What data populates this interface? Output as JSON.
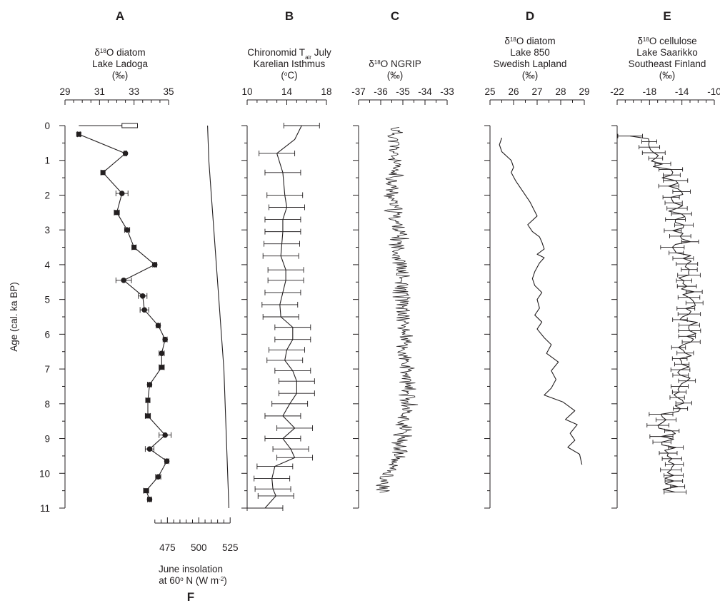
{
  "chart_data": {
    "type": "line",
    "y_axis": {
      "label": "Age (cal. ka BP)",
      "ticks": [
        "0",
        "1",
        "2",
        "3",
        "4",
        "5",
        "6",
        "7",
        "8",
        "9",
        "10",
        "11"
      ],
      "range": [
        0,
        11
      ],
      "inverted": true
    },
    "panels": [
      {
        "letter": "A",
        "title_lines": [
          "δ18O diatom",
          "Lake Ladoga",
          "(‰)"
        ],
        "xlim": [
          29,
          35
        ],
        "ticks": [
          "29",
          "31",
          "33",
          "35"
        ],
        "tick_values": [
          29,
          31,
          33,
          35
        ],
        "minor_step": 0.5,
        "modern_range": [
          29.8,
          33.2
        ],
        "modern_box": [
          32.3,
          33.2
        ],
        "series": [
          {
            "kind": "points_errors",
            "x": [
              29.8,
              32.5,
              31.2,
              32.3,
              32.0,
              32.6,
              33.0,
              34.2,
              32.4,
              33.5,
              33.6,
              34.4,
              34.8,
              34.6,
              34.6,
              33.9,
              33.8,
              33.8,
              34.8,
              33.9,
              34.9,
              34.4,
              33.7,
              33.9
            ],
            "age": [
              0.25,
              0.8,
              1.35,
              1.95,
              2.5,
              3.0,
              3.5,
              4.0,
              4.45,
              4.9,
              5.3,
              5.75,
              6.15,
              6.55,
              6.95,
              7.45,
              7.9,
              8.35,
              8.9,
              9.3,
              9.65,
              10.1,
              10.5,
              10.75
            ],
            "err": [
              0.08,
              0.08,
              0.12,
              0.35,
              0.15,
              0.15,
              0.12,
              0.12,
              0.45,
              0.25,
              0.25,
              0.12,
              0.12,
              0.15,
              0.15,
              0.12,
              0.12,
              0.15,
              0.35,
              0.25,
              0.12,
              0.15,
              0.15,
              0.12
            ]
          }
        ]
      },
      {
        "letter": "B",
        "title_lines": [
          "Chironomid T",
          "air",
          " July",
          "Karelian Isthmus",
          "(°C)"
        ],
        "xlim": [
          10,
          18
        ],
        "ticks": [
          "10",
          "14",
          "18"
        ],
        "tick_values": [
          10,
          14,
          18
        ],
        "minor_step": 1,
        "series": [
          {
            "kind": "line_errors",
            "x": [
              15.5,
              14.8,
              13.0,
              13.6,
              13.8,
              14.0,
              13.6,
              13.6,
              13.5,
              13.4,
              13.9,
              13.9,
              13.6,
              13.3,
              13.4,
              14.6,
              14.6,
              14.0,
              13.8,
              14.6,
              15.0,
              15.0,
              14.3,
              13.6,
              14.8,
              13.6,
              14.4,
              14.8,
              12.8,
              12.5,
              12.6,
              12.9,
              11.8
            ],
            "age": [
              0,
              0.4,
              0.8,
              1.35,
              2.0,
              2.35,
              2.7,
              3.05,
              3.4,
              3.75,
              4.15,
              4.45,
              4.8,
              5.15,
              5.5,
              5.8,
              6.15,
              6.45,
              6.75,
              7.05,
              7.35,
              7.7,
              8.0,
              8.35,
              8.7,
              9.0,
              9.3,
              9.55,
              9.8,
              10.15,
              10.45,
              10.65,
              11.0
            ],
            "err": [
              1.8,
              0,
              1.8,
              1.8,
              1.8,
              1.8,
              1.8,
              1.8,
              1.8,
              1.8,
              1.8,
              1.8,
              1.8,
              1.8,
              1.8,
              1.8,
              1.8,
              1.8,
              1.8,
              1.8,
              1.8,
              1.8,
              1.8,
              1.8,
              1.8,
              1.8,
              1.8,
              1.8,
              1.8,
              1.8,
              1.8,
              1.8,
              1.8
            ]
          }
        ]
      },
      {
        "letter": "C",
        "title_lines": [
          "δ18O NGRIP",
          "(‰)"
        ],
        "xlim": [
          -37,
          -33
        ],
        "ticks": [
          "-37",
          "-36",
          "-35",
          "-34",
          "-33"
        ],
        "tick_values": [
          -37,
          -36,
          -35,
          -34,
          -33
        ],
        "minor_step": 0.5,
        "series": [
          {
            "kind": "dense_line",
            "age_start": 0.05,
            "age_end": 10.55,
            "step": 0.025,
            "anchors_age": [
              0.05,
              0.5,
              1.0,
              1.5,
              2.0,
              2.5,
              3.0,
              3.5,
              4.0,
              4.5,
              5.0,
              5.5,
              6.0,
              6.5,
              7.0,
              7.5,
              8.0,
              8.5,
              9.0,
              9.5,
              10.0,
              10.3,
              10.55
            ],
            "anchors_mean": [
              -35.3,
              -35.4,
              -35.4,
              -35.4,
              -35.5,
              -35.4,
              -35.2,
              -35.2,
              -35.1,
              -35.1,
              -35.0,
              -35.0,
              -34.9,
              -35.0,
              -34.9,
              -34.8,
              -34.7,
              -35.0,
              -35.0,
              -35.3,
              -35.6,
              -35.9,
              -36.0
            ],
            "amplitude": 0.35
          }
        ]
      },
      {
        "letter": "D",
        "title_lines": [
          "δ18O diatom",
          "Lake 850",
          "Swedish Lapland",
          "(‰)"
        ],
        "xlim": [
          25,
          29
        ],
        "ticks": [
          "25",
          "26",
          "27",
          "28",
          "29"
        ],
        "tick_values": [
          25,
          26,
          27,
          28,
          29
        ],
        "minor_step": 0.5,
        "series": [
          {
            "kind": "line",
            "x": [
              25.5,
              25.4,
              25.5,
              25.9,
              26.0,
              25.9,
              26.1,
              26.3,
              26.5,
              26.7,
              27.0,
              26.6,
              26.8,
              27.1,
              27.2,
              27.3,
              27.0,
              27.3,
              27.1,
              26.9,
              26.8,
              26.9,
              27.2,
              27.0,
              27.1,
              26.9,
              27.2,
              27.0,
              27.3,
              27.6,
              27.4,
              27.9,
              27.6,
              27.8,
              27.6,
              27.3,
              28.1,
              28.6,
              28.2,
              28.7,
              28.4,
              28.6,
              28.3,
              28.8,
              28.9
            ],
            "age": [
              0.35,
              0.55,
              0.75,
              1.0,
              1.2,
              1.35,
              1.6,
              1.8,
              2.0,
              2.2,
              2.6,
              2.85,
              3.05,
              3.2,
              3.35,
              3.55,
              3.7,
              3.8,
              3.95,
              4.2,
              4.4,
              4.6,
              4.8,
              5.0,
              5.25,
              5.45,
              5.65,
              5.85,
              6.1,
              6.3,
              6.55,
              6.8,
              7.05,
              7.3,
              7.55,
              7.75,
              7.95,
              8.2,
              8.45,
              8.6,
              8.85,
              9.05,
              9.25,
              9.45,
              9.75
            ]
          }
        ]
      },
      {
        "letter": "E",
        "title_lines": [
          "δ18O cellulose",
          "Lake Saarikko",
          "Southeast Finland",
          "(‰)"
        ],
        "xlim": [
          -22,
          -10
        ],
        "ticks": [
          "-22",
          "-18",
          "-14",
          "-10"
        ],
        "tick_values": [
          -22,
          -18,
          -14,
          -10
        ],
        "minor_step": 1,
        "series": [
          {
            "kind": "dense_errors",
            "age_start": 0.3,
            "age_end": 10.55,
            "step": 0.08,
            "anchors_age": [
              0.3,
              0.8,
              1.5,
              2.5,
              3.5,
              4.5,
              5.5,
              6.5,
              7.5,
              8.5,
              9.5,
              10.55
            ],
            "anchors_mean": [
              -19.5,
              -17.5,
              -15.5,
              -14.5,
              -14.0,
              -13.5,
              -13.2,
              -13.5,
              -14.0,
              -16.0,
              -15.5,
              -15.5
            ],
            "amplitude": 1.2,
            "err": 1.2
          }
        ]
      }
    ],
    "insolation": {
      "letter": "F",
      "title_lines": [
        "June insolation",
        "at 60° N (W m",
        "-2",
        ")"
      ],
      "xlim": [
        460,
        530
      ],
      "ticks": [
        "475",
        "500",
        "525"
      ],
      "tick_values": [
        475,
        500,
        525
      ],
      "minor_step": 5,
      "x": [
        507,
        508,
        510,
        512,
        514,
        516,
        518,
        520,
        521,
        522,
        523,
        523.5,
        524
      ],
      "age": [
        0.0,
        1.0,
        2.0,
        3.0,
        4.0,
        5.0,
        6.0,
        7.0,
        8.0,
        9.0,
        10.0,
        10.5,
        11.0
      ]
    }
  }
}
